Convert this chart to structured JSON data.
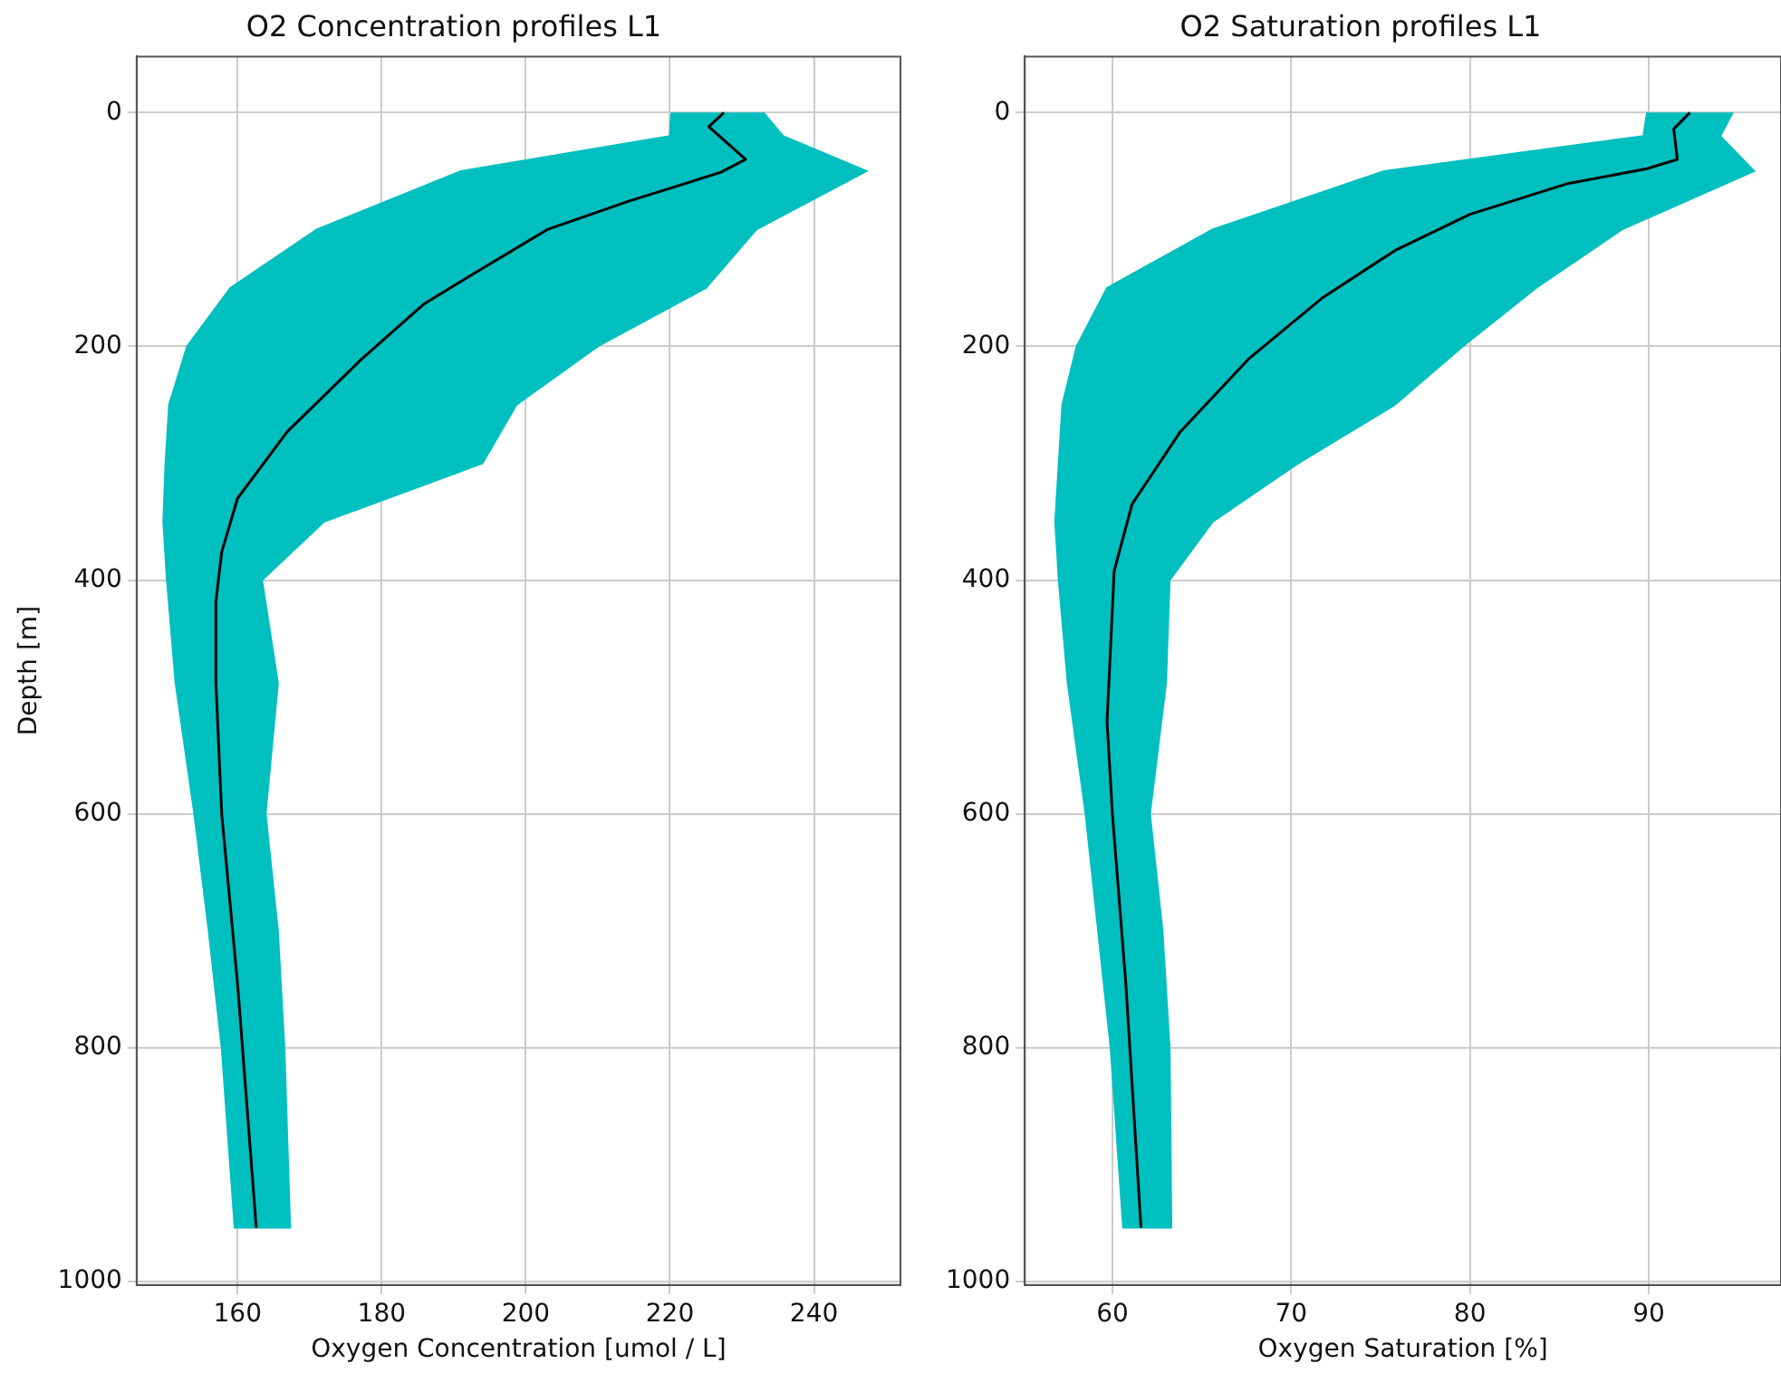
{
  "chart_data": [
    {
      "type": "line",
      "title": "O2 Concentration profiles L1",
      "xlabel": "Oxygen Concentration [umol / L]",
      "ylabel": "Depth [m]",
      "xlim": [
        146,
        252
      ],
      "xticks": [
        160,
        180,
        200,
        220,
        240
      ],
      "ylim": [
        1003,
        -48
      ],
      "yticks": [
        0,
        200,
        400,
        600,
        800,
        1000
      ],
      "grid": true,
      "legend": false,
      "series": [
        {
          "type": "area",
          "color": "#00bfbf",
          "x": [
            220.2,
            220,
            191,
            171,
            159,
            153,
            150.5,
            150,
            149.7,
            150.2,
            151.4,
            154,
            156,
            157.8,
            159.6,
            167.3,
            166.5,
            165.6,
            163.9,
            165.6,
            163.4,
            172,
            194,
            198.7,
            210,
            225,
            232,
            247.3,
            235.7,
            233
          ],
          "values": [
            0,
            20,
            50,
            100,
            150,
            200,
            250,
            300,
            350,
            400,
            488,
            600,
            700,
            800,
            954,
            954,
            800,
            700,
            600,
            488,
            400,
            350,
            300,
            250,
            200,
            150,
            100,
            50,
            20,
            0
          ]
        },
        {
          "type": "line",
          "color": "#000000",
          "x": [
            227.5,
            225.4,
            230.5,
            227.1,
            214.2,
            203,
            192.7,
            185.8,
            177.2,
            166.9,
            160,
            157.8,
            157,
            157,
            157.8,
            160,
            162.6
          ],
          "values": [
            0,
            12,
            40,
            51,
            76,
            100,
            138,
            164,
            211,
            273,
            330,
            376,
            418,
            488,
            600,
            745,
            954
          ]
        }
      ]
    },
    {
      "type": "line",
      "title": "O2 Saturation profiles L1",
      "xlabel": "Oxygen Saturation [%]",
      "xlim": [
        55.1,
        97.4
      ],
      "xticks": [
        60,
        70,
        80,
        90
      ],
      "ylim": [
        1003,
        -48
      ],
      "yticks": [
        0,
        200,
        400,
        600,
        800,
        1000
      ],
      "grid": true,
      "legend": false,
      "series": [
        {
          "type": "area",
          "color": "#00bfbf",
          "x": [
            89.9,
            89.7,
            75.2,
            65.6,
            59.7,
            58,
            57.2,
            57,
            56.8,
            57,
            57.5,
            58.5,
            59.2,
            59.9,
            60.6,
            63.3,
            63.2,
            62.8,
            62.1,
            63,
            63.2,
            65.6,
            70.4,
            75.8,
            79.6,
            83.7,
            88.5,
            95.9,
            94,
            94.7
          ],
          "values": [
            0,
            20,
            50,
            100,
            150,
            200,
            250,
            300,
            350,
            400,
            488,
            600,
            700,
            800,
            954,
            954,
            800,
            700,
            600,
            488,
            400,
            350,
            300,
            250,
            200,
            150,
            100,
            50,
            20,
            0
          ]
        },
        {
          "type": "line",
          "color": "#000000",
          "x": [
            92.3,
            91.4,
            91.6,
            89.9,
            85.4,
            80,
            75.8,
            71.7,
            67.6,
            63.8,
            61.1,
            60.1,
            59.7,
            60,
            60.75,
            61.6
          ],
          "values": [
            0,
            14,
            40,
            48,
            61,
            87,
            118,
            159,
            211,
            273,
            335,
            392,
            521,
            600,
            745,
            954
          ]
        }
      ]
    }
  ]
}
